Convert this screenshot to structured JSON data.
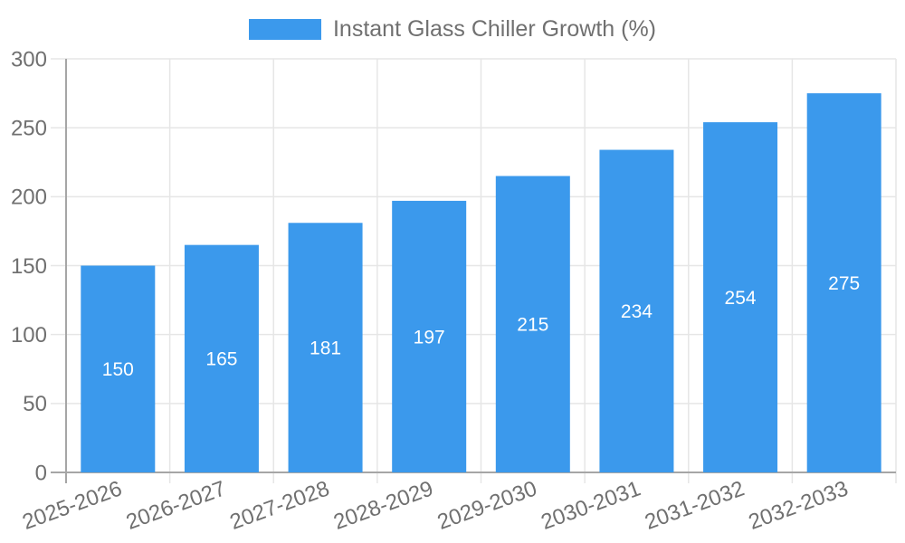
{
  "legend": {
    "label": "Instant Glass Chiller Growth (%)",
    "position": "top"
  },
  "chart_data": {
    "type": "bar",
    "title": "",
    "categories": [
      "2025-2026",
      "2026-2027",
      "2027-2028",
      "2028-2029",
      "2029-2030",
      "2030-2031",
      "2031-2032",
      "2032-2033"
    ],
    "series": [
      {
        "name": "Instant Glass Chiller Growth (%)",
        "values": [
          150,
          165,
          181,
          197,
          215,
          234,
          254,
          275
        ]
      }
    ],
    "value_labels": {
      "shown": true,
      "placement": "inside-center",
      "color": "#FFFFFF"
    },
    "xlabel": "",
    "ylabel": "",
    "ylim": [
      0,
      300
    ],
    "yticks": [
      0,
      50,
      100,
      150,
      200,
      250,
      300
    ],
    "grid": true,
    "x_tick_rotation_deg": -20,
    "legend_position": "top",
    "colors": {
      "bar": "#3B99EC",
      "grid": "#E6E6E6",
      "axis": "#A6A6A6",
      "tick_text": "#707070",
      "background": "#FFFFFF"
    }
  }
}
